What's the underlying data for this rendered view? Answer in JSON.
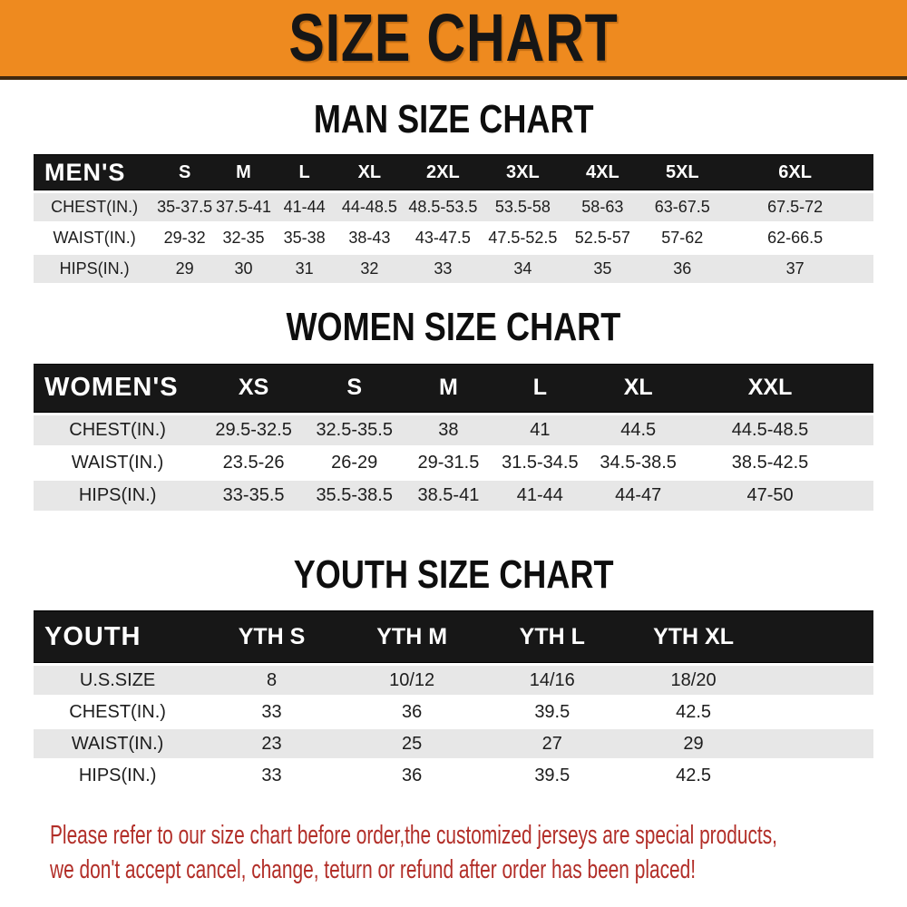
{
  "banner": {
    "title": "SIZE CHART"
  },
  "sections": [
    {
      "title": "MAN SIZE CHART",
      "table": {
        "name": "MEN'S",
        "columns": [
          "S",
          "M",
          "L",
          "XL",
          "2XL",
          "3XL",
          "4XL",
          "5XL",
          "6XL"
        ],
        "rows": [
          {
            "label": "CHEST(IN.)",
            "values": [
              "35-37.5",
              "37.5-41",
              "41-44",
              "44-48.5",
              "48.5-53.5",
              "53.5-58",
              "58-63",
              "63-67.5",
              "67.5-72"
            ]
          },
          {
            "label": "WAIST(IN.)",
            "values": [
              "29-32",
              "32-35",
              "35-38",
              "38-43",
              "43-47.5",
              "47.5-52.5",
              "52.5-57",
              "57-62",
              "62-66.5"
            ]
          },
          {
            "label": "HIPS(IN.)",
            "values": [
              "29",
              "30",
              "31",
              "32",
              "33",
              "34",
              "35",
              "36",
              "37"
            ]
          }
        ]
      }
    },
    {
      "title": "WOMEN SIZE CHART",
      "table": {
        "name": "WOMEN'S",
        "columns": [
          "XS",
          "S",
          "M",
          "L",
          "XL",
          "XXL"
        ],
        "rows": [
          {
            "label": "CHEST(IN.)",
            "values": [
              "29.5-32.5",
              "32.5-35.5",
              "38",
              "41",
              "44.5",
              "44.5-48.5"
            ]
          },
          {
            "label": "WAIST(IN.)",
            "values": [
              "23.5-26",
              "26-29",
              "29-31.5",
              "31.5-34.5",
              "34.5-38.5",
              "38.5-42.5"
            ]
          },
          {
            "label": "HIPS(IN.)",
            "values": [
              "33-35.5",
              "35.5-38.5",
              "38.5-41",
              "41-44",
              "44-47",
              "47-50"
            ]
          }
        ]
      }
    },
    {
      "title": "YOUTH SIZE CHART",
      "table": {
        "name": "YOUTH",
        "columns": [
          "YTH S",
          "YTH M",
          "YTH L",
          "YTH XL"
        ],
        "rows": [
          {
            "label": "U.S.SIZE",
            "values": [
              "8",
              "10/12",
              "14/16",
              "18/20"
            ]
          },
          {
            "label": "CHEST(IN.)",
            "values": [
              "33",
              "36",
              "39.5",
              "42.5"
            ]
          },
          {
            "label": "WAIST(IN.)",
            "values": [
              "23",
              "25",
              "27",
              "29"
            ]
          },
          {
            "label": "HIPS(IN.)",
            "values": [
              "33",
              "36",
              "39.5",
              "42.5"
            ]
          }
        ]
      }
    }
  ],
  "note": {
    "line1": "Please refer to our size chart before order,the customized jerseys are special products,",
    "line2": "we don't accept cancel, change, teturn or refund after order has been placed!"
  },
  "colors": {
    "banner_bg": "#ee8a1f",
    "banner_border": "#3f280f",
    "header_bar": "#171717",
    "row_alt": "#e7e7e7",
    "note_text": "#b22e28"
  }
}
